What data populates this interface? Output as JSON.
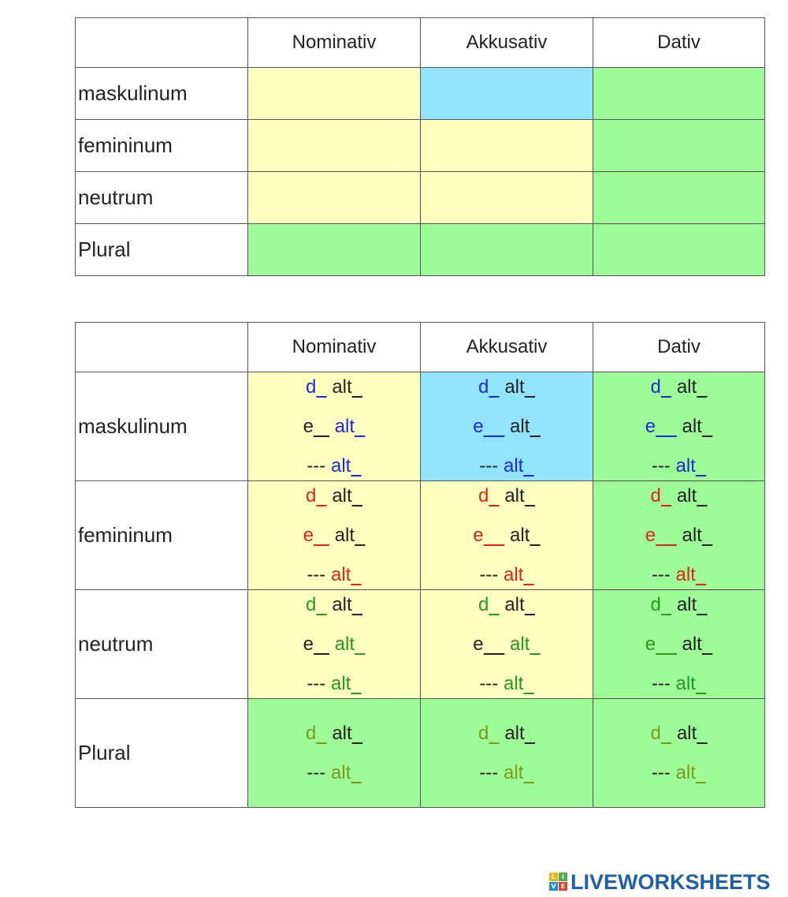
{
  "table1": {
    "headers": [
      "",
      "Nominativ",
      "Akkusativ",
      "Dativ"
    ],
    "rows": [
      {
        "label": "maskulinum",
        "colors": [
          "yellow",
          "blue",
          "green"
        ]
      },
      {
        "label": "femininum",
        "colors": [
          "yellow",
          "yellow",
          "green"
        ]
      },
      {
        "label": "neutrum",
        "colors": [
          "yellow",
          "yellow",
          "green"
        ]
      },
      {
        "label": "Plural",
        "colors": [
          "green",
          "green",
          "green"
        ]
      }
    ]
  },
  "table2": {
    "headers": [
      "",
      "Nominativ",
      "Akkusativ",
      "Dativ"
    ],
    "rows": [
      {
        "label": "maskulinum",
        "colors": [
          "yellow",
          "blue",
          "green"
        ],
        "cells": [
          [
            "d__ alt__",
            "e___ alt__",
            "--- alt__"
          ],
          [
            "d__ alt__",
            "e____ alt__",
            "--- alt__"
          ],
          [
            "d__ alt__",
            "e____ alt__",
            "--- alt__"
          ]
        ]
      },
      {
        "label": "femininum",
        "colors": [
          "yellow",
          "yellow",
          "green"
        ],
        "cells": [
          [
            "d__ alt__",
            "e___ alt__",
            "--- alt__"
          ],
          [
            "d__ alt__",
            "e____ alt__",
            "--- alt__"
          ],
          [
            "d__ alt__",
            "e____ alt__",
            "--- alt__"
          ]
        ]
      },
      {
        "label": "neutrum",
        "colors": [
          "yellow",
          "yellow",
          "green"
        ],
        "cells": [
          [
            "d__ alt__",
            "e___ alt__",
            "--- alt__"
          ],
          [
            "d__ alt__",
            "e____ alt__",
            "--- alt__"
          ],
          [
            "d__ alt__",
            "e____ alt__",
            "--- alt__"
          ]
        ]
      },
      {
        "label": "Plural",
        "colors": [
          "green",
          "green",
          "green"
        ],
        "cells": [
          [
            "d__ alt__",
            "--- alt__"
          ],
          [
            "d__ alt__",
            "--- alt__"
          ],
          [
            "d__ alt__",
            "--- alt__"
          ]
        ]
      }
    ]
  },
  "colors": {
    "yellow": "#ffffc0",
    "blue": "#92e3fd",
    "green": "#9efc98",
    "masc_text": "#1a2bd8",
    "fem_text": "#e2231a",
    "neut_text": "#239b1f",
    "plural_text": "#7a9a1a"
  },
  "logo": {
    "text": "LIVEWORKSHEETS",
    "icon": "liveworksheets-logo-icon"
  }
}
